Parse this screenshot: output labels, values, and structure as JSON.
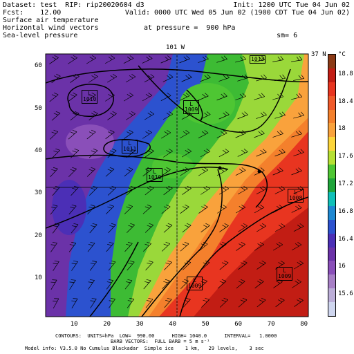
{
  "header": {
    "dataset_line": "Dataset: test  RIP: rip20020604 d3",
    "init_line": "Init: 1200 UTC Tue 04 Jun 02",
    "fcst_line": "Fcst:    12.00",
    "valid_line": "Valid: 0000 UTC Wed 05 Jun 02 (1900 CDT Tue 04 Jun 02)",
    "field1": "Surface air temperature",
    "field2": "Horizontal wind vectors",
    "field3": "Sea-level pressure",
    "pressure_text": "at pressure =  900 hPa",
    "sm_text": "sm= 6"
  },
  "map": {
    "top_label": "101 W",
    "right_label": "37 N",
    "x_ticks": [
      "10",
      "20",
      "30",
      "40",
      "50",
      "60",
      "70",
      "80"
    ],
    "y_ticks": [
      "10",
      "20",
      "30",
      "40",
      "50",
      "60"
    ],
    "pressure_labels": [
      {
        "label": "L",
        "value": "1010"
      },
      {
        "label": "L",
        "value": "1009"
      },
      {
        "label": "L",
        "value": "1011"
      },
      {
        "label": "L",
        "value": "1010"
      },
      {
        "label": "L",
        "value": "1008"
      },
      {
        "label": "L",
        "value": "1009"
      },
      {
        "label": "L",
        "value": "1009"
      },
      {
        "label": "",
        "value": "1013"
      }
    ]
  },
  "colorbar": {
    "unit": "°C",
    "labels": [
      "18.8",
      "18.4",
      "18",
      "17.6",
      "17.2",
      "16.8",
      "16.4",
      "16",
      "15.6"
    ],
    "colors": [
      "#8b3a16",
      "#c21d14",
      "#e83520",
      "#f05a2a",
      "#f4802c",
      "#f9a23c",
      "#fcd53a",
      "#b6e033",
      "#4ec633",
      "#1fa53a",
      "#0fc0b8",
      "#1e88d2",
      "#2c52cf",
      "#4b2fb6",
      "#6b32a8",
      "#8a4fb9",
      "#a77fc6",
      "#bcaed8",
      "#cfd6ef"
    ]
  },
  "footer": {
    "line1": "CONTOURS:  UNITS=hPa  LOW=  990.00      HIGH= 1040.0      INTERVAL=   1.0000",
    "line2": "BARB VECTORS:  FULL BARB = 5 m s⁻¹",
    "line3": "Model info: V3.5.0 No Cumulus Blackadar  Simple ice    1 km,   29 levels,    3 sec"
  }
}
